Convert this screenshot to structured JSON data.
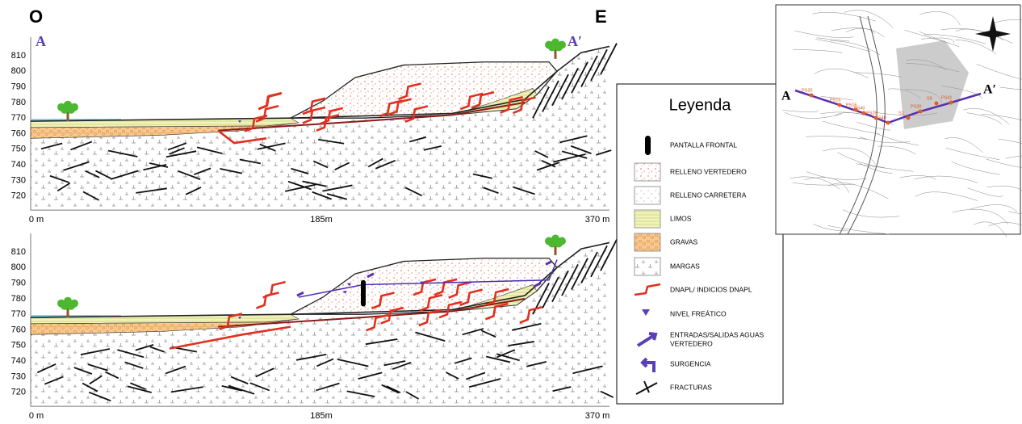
{
  "header": {
    "west": "O",
    "east": "E"
  },
  "sections": [
    {
      "start": "A",
      "end": "A′",
      "yticks": [
        810,
        800,
        790,
        780,
        770,
        760,
        750,
        740,
        730,
        720
      ],
      "xticks": [
        "0 m",
        "185m",
        "370 m"
      ]
    },
    {
      "yticks": [
        810,
        800,
        790,
        780,
        770,
        760,
        750,
        740,
        730,
        720
      ],
      "xticks": [
        "0 m",
        "185m",
        "370 m"
      ]
    }
  ],
  "legend": {
    "title": "Leyenda",
    "items": [
      {
        "label": "PANTALLA FRONTAL"
      },
      {
        "label": "RELLENO VERTEDERO"
      },
      {
        "label": "RELLENO CARRETERA"
      },
      {
        "label": "LIMOS"
      },
      {
        "label": "GRAVAS"
      },
      {
        "label": "MARGAS"
      },
      {
        "label": "DNAPL/ INDICIOS DNAPL"
      },
      {
        "label": "NIVEL FREÁTICO"
      },
      {
        "label": [
          "ENTRADAS/SALIDAS AGUAS",
          "VERTEDERO"
        ]
      },
      {
        "label": "SURGENCIA"
      },
      {
        "label": "FRACTURAS"
      }
    ]
  },
  "map": {
    "start": "A",
    "end": "A′",
    "labels": [
      "PS20",
      "PS15",
      "PS16",
      "PS40",
      "PS28",
      "S40",
      "S1",
      "PS30",
      "S9",
      "PS41"
    ]
  }
}
